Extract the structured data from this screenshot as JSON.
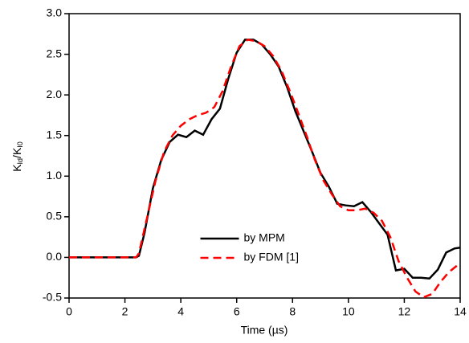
{
  "chart_data": {
    "type": "line",
    "x_label": "Time (µs)",
    "y_label": [
      "K",
      "Id",
      "/K",
      "I0"
    ],
    "xlim": [
      0,
      14
    ],
    "xticks": [
      0,
      2,
      4,
      6,
      8,
      10,
      12,
      14
    ],
    "ylim": [
      -0.5,
      3.0
    ],
    "yticks": [
      -0.5,
      {
        "value": 0,
        "label": "0.0"
      },
      0.5,
      {
        "value": 1,
        "label": "1.0"
      },
      1.5,
      {
        "value": 2,
        "label": "2.0"
      },
      2.5,
      {
        "value": 3,
        "label": "3.0"
      }
    ],
    "legend_loc": "lower center",
    "series": [
      {
        "name": "by MPM",
        "color": "#000000",
        "dash": "solid",
        "x": [
          0,
          0.5,
          1,
          1.5,
          2,
          2.4,
          2.5,
          2.7,
          3.0,
          3.3,
          3.6,
          3.9,
          4.2,
          4.5,
          4.8,
          5.1,
          5.4,
          5.7,
          6.0,
          6.3,
          6.6,
          6.9,
          7.2,
          7.5,
          7.8,
          8.1,
          8.4,
          8.7,
          9.0,
          9.3,
          9.6,
          9.9,
          10.2,
          10.5,
          10.8,
          11.1,
          11.4,
          11.7,
          12.0,
          12.3,
          12.6,
          12.9,
          13.2,
          13.5,
          13.8,
          14.0
        ],
        "values": [
          0,
          0,
          0,
          0,
          0,
          0,
          0.02,
          0.3,
          0.85,
          1.2,
          1.42,
          1.51,
          1.48,
          1.56,
          1.51,
          1.7,
          1.83,
          2.2,
          2.52,
          2.68,
          2.68,
          2.62,
          2.5,
          2.35,
          2.1,
          1.8,
          1.55,
          1.3,
          1.04,
          0.87,
          0.66,
          0.64,
          0.63,
          0.68,
          0.56,
          0.42,
          0.28,
          -0.16,
          -0.14,
          -0.25,
          -0.25,
          -0.26,
          -0.15,
          0.06,
          0.11,
          0.12
        ]
      },
      {
        "name": "by FDM [1]",
        "color": "#ff0000",
        "dash": "dashed",
        "x": [
          0,
          0.5,
          1,
          1.5,
          2,
          2.4,
          2.5,
          2.8,
          3.1,
          3.4,
          3.7,
          4.0,
          4.3,
          4.6,
          4.9,
          5.2,
          5.5,
          5.8,
          6.1,
          6.4,
          6.7,
          7.0,
          7.3,
          7.6,
          7.9,
          8.2,
          8.5,
          8.8,
          9.1,
          9.4,
          9.7,
          10.0,
          10.3,
          10.6,
          10.9,
          11.2,
          11.5,
          11.8,
          12.1,
          12.4,
          12.7,
          13.0,
          13.3,
          13.6,
          14.0
        ],
        "values": [
          0,
          0,
          0,
          0,
          0,
          0,
          0.05,
          0.5,
          0.95,
          1.3,
          1.5,
          1.62,
          1.7,
          1.75,
          1.78,
          1.85,
          2.05,
          2.35,
          2.6,
          2.68,
          2.66,
          2.6,
          2.48,
          2.3,
          2.05,
          1.78,
          1.5,
          1.2,
          0.95,
          0.78,
          0.63,
          0.58,
          0.58,
          0.6,
          0.55,
          0.45,
          0.25,
          -0.05,
          -0.25,
          -0.42,
          -0.49,
          -0.45,
          -0.3,
          -0.18,
          -0.07
        ]
      }
    ]
  }
}
